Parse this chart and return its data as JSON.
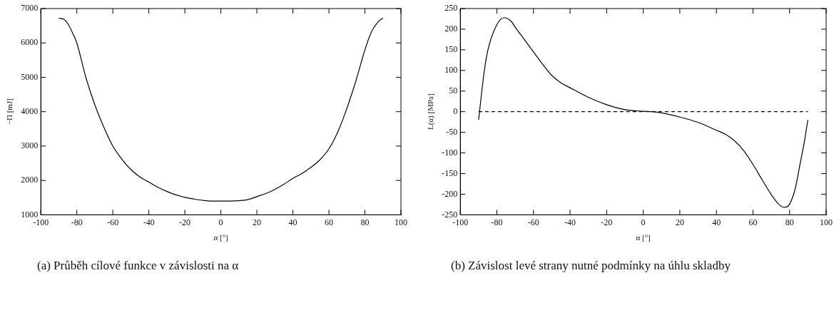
{
  "chart_data": [
    {
      "type": "line",
      "xlabel": "α [°]",
      "ylabel": "−Π [mJ]",
      "xlim": [
        -100,
        100
      ],
      "ylim": [
        1000,
        7000
      ],
      "xticks": [
        -100,
        -80,
        -60,
        -40,
        -20,
        0,
        20,
        40,
        60,
        80,
        100
      ],
      "yticks": [
        1000,
        2000,
        3000,
        4000,
        5000,
        6000,
        7000
      ],
      "marker": "none",
      "legend": false,
      "annotations": [
        "(a) Průběh cílové funkce v závislosti na α"
      ],
      "series": [
        {
          "color": "#000000",
          "line_style": "solid",
          "x": [
            -90,
            -87,
            -85,
            -82,
            -80,
            -75,
            -70,
            -65,
            -60,
            -55,
            -50,
            -45,
            -40,
            -35,
            -30,
            -25,
            -20,
            -15,
            -10,
            -5,
            0,
            5,
            10,
            15,
            20,
            25,
            30,
            35,
            40,
            45,
            50,
            55,
            60,
            65,
            70,
            75,
            80,
            83,
            85,
            88,
            90
          ],
          "values": [
            6720,
            6680,
            6560,
            6250,
            6000,
            5000,
            4200,
            3550,
            3000,
            2620,
            2320,
            2100,
            1950,
            1800,
            1680,
            1580,
            1510,
            1460,
            1420,
            1400,
            1400,
            1400,
            1410,
            1440,
            1530,
            1620,
            1740,
            1890,
            2060,
            2200,
            2380,
            2600,
            2920,
            3420,
            4100,
            4900,
            5800,
            6250,
            6450,
            6650,
            6720
          ]
        }
      ]
    },
    {
      "type": "line",
      "xlabel": "α [°]",
      "ylabel": "L(α) [MPa]",
      "xlim": [
        -100,
        100
      ],
      "ylim": [
        -250,
        250
      ],
      "xticks": [
        -100,
        -80,
        -60,
        -40,
        -20,
        0,
        20,
        40,
        60,
        80,
        100
      ],
      "yticks": [
        -250,
        -200,
        -150,
        -100,
        -50,
        0,
        50,
        100,
        150,
        200,
        250
      ],
      "marker": "none",
      "legend": false,
      "annotations": [
        "(b) Závislost levé strany nutné podmínky na úhlu skladby"
      ],
      "series": [
        {
          "color": "#000000",
          "line_style": "solid",
          "x": [
            -90,
            -87,
            -85,
            -80,
            -76,
            -72,
            -70,
            -65,
            -60,
            -55,
            -50,
            -45,
            -40,
            -30,
            -20,
            -10,
            0,
            5,
            10,
            20,
            30,
            40,
            45,
            50,
            55,
            60,
            65,
            70,
            74,
            77,
            80,
            83,
            86,
            88,
            90
          ],
          "values": [
            -20,
            95,
            148,
            211,
            228,
            218,
            205,
            175,
            145,
            115,
            88,
            70,
            58,
            35,
            17,
            5,
            1,
            0,
            -3,
            -13,
            -26,
            -45,
            -55,
            -71,
            -95,
            -128,
            -165,
            -201,
            -224,
            -232,
            -224,
            -188,
            -121,
            -75,
            -20
          ]
        },
        {
          "color": "#000000",
          "line_style": "dashed",
          "x": [
            -90,
            90
          ],
          "values": [
            0,
            0
          ]
        }
      ]
    }
  ]
}
